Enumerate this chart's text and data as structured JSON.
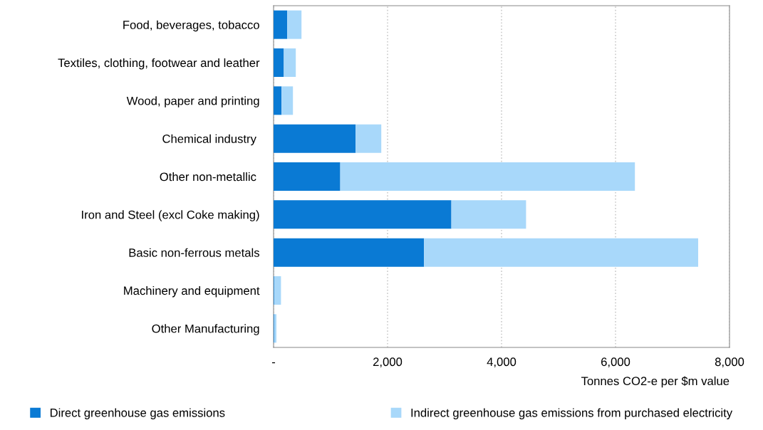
{
  "chart_data": {
    "type": "bar",
    "orientation": "horizontal",
    "stacked": true,
    "categories": [
      "Food, beverages, tobacco",
      "Textiles, clothing, footwear and leather",
      "Wood, paper and printing",
      "Chemical industry ",
      "Other non-metallic ",
      "Iron and Steel (excl Coke making)",
      "Basic non-ferrous metals",
      "Machinery and equipment",
      "Other Manufacturing"
    ],
    "series": [
      {
        "name": "Direct greenhouse gas emissions",
        "color": "#0a7ad4",
        "values": [
          240,
          180,
          140,
          1440,
          1170,
          3120,
          2640,
          10,
          10
        ]
      },
      {
        "name": "Indirect greenhouse gas emissions from purchased electricity",
        "color": "#a8d8fa",
        "values": [
          250,
          210,
          200,
          450,
          5170,
          1310,
          4810,
          120,
          40
        ]
      }
    ],
    "xlabel": "Tonnes CO2-e per $m value",
    "xlim": [
      0,
      8000
    ],
    "xticks": [
      {
        "value": 0,
        "label": "-"
      },
      {
        "value": 2000,
        "label": "2,000"
      },
      {
        "value": 4000,
        "label": "4,000"
      },
      {
        "value": 6000,
        "label": "6,000"
      },
      {
        "value": 8000,
        "label": "8,000"
      }
    ],
    "grid": "x",
    "legend": "bottom"
  }
}
